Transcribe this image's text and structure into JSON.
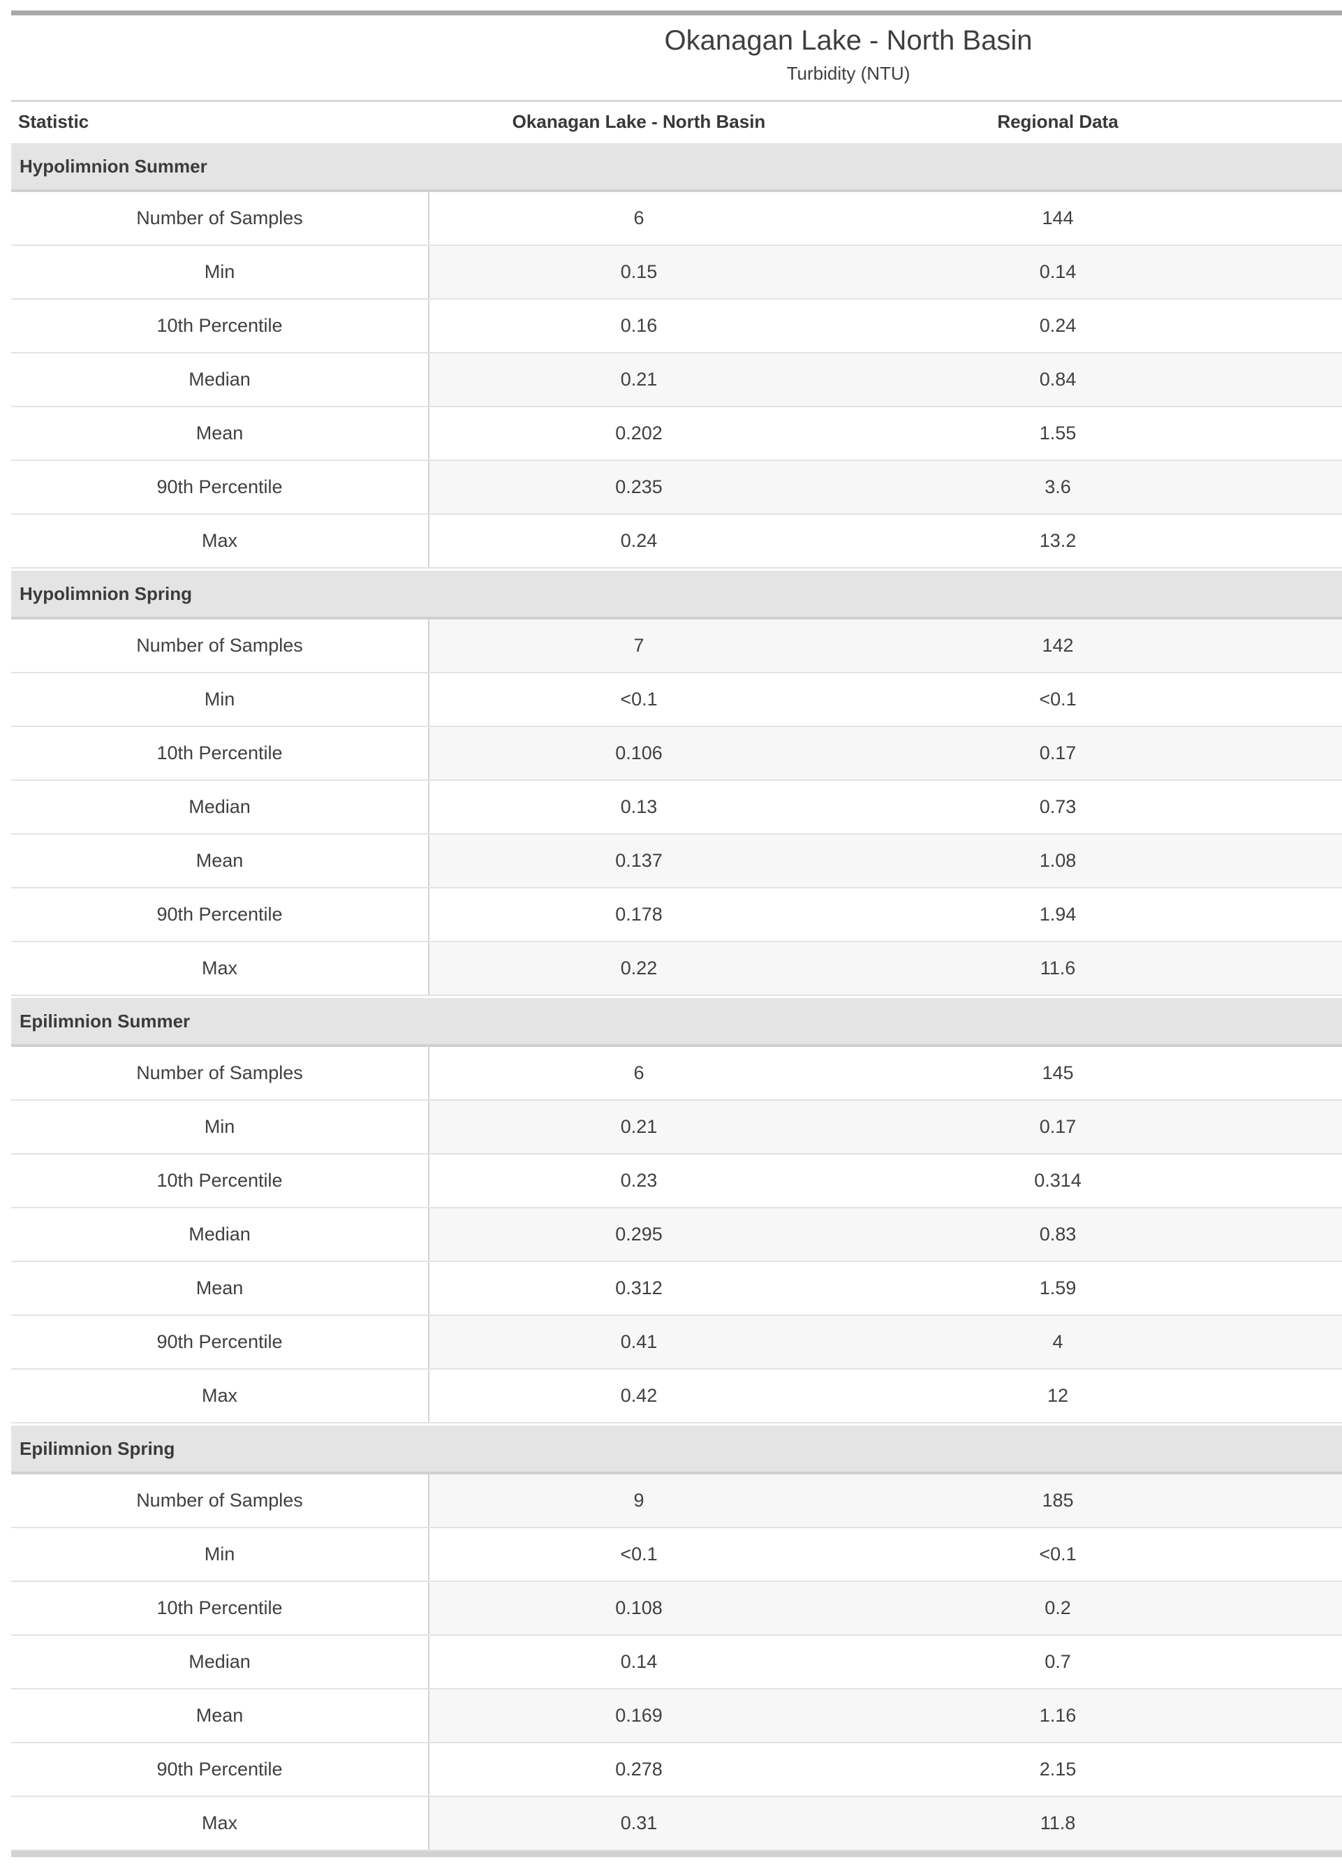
{
  "chart_data": {
    "type": "table",
    "title": "Okanagan Lake - North Basin",
    "subtitle": "Turbidity (NTU)",
    "columns": [
      "Statistic",
      "Okanagan Lake - North Basin",
      "Regional Data"
    ],
    "sections": [
      {
        "name": "Hypolimnion Summer",
        "rows": [
          [
            "Number of Samples",
            "6",
            "144"
          ],
          [
            "Min",
            "0.15",
            "0.14"
          ],
          [
            "10th Percentile",
            "0.16",
            "0.24"
          ],
          [
            "Median",
            "0.21",
            "0.84"
          ],
          [
            "Mean",
            "0.202",
            "1.55"
          ],
          [
            "90th Percentile",
            "0.235",
            "3.6"
          ],
          [
            "Max",
            "0.24",
            "13.2"
          ]
        ]
      },
      {
        "name": "Hypolimnion Spring",
        "rows": [
          [
            "Number of Samples",
            "7",
            "142"
          ],
          [
            "Min",
            "<0.1",
            "<0.1"
          ],
          [
            "10th Percentile",
            "0.106",
            "0.17"
          ],
          [
            "Median",
            "0.13",
            "0.73"
          ],
          [
            "Mean",
            "0.137",
            "1.08"
          ],
          [
            "90th Percentile",
            "0.178",
            "1.94"
          ],
          [
            "Max",
            "0.22",
            "11.6"
          ]
        ]
      },
      {
        "name": "Epilimnion Summer",
        "rows": [
          [
            "Number of Samples",
            "6",
            "145"
          ],
          [
            "Min",
            "0.21",
            "0.17"
          ],
          [
            "10th Percentile",
            "0.23",
            "0.314"
          ],
          [
            "Median",
            "0.295",
            "0.83"
          ],
          [
            "Mean",
            "0.312",
            "1.59"
          ],
          [
            "90th Percentile",
            "0.41",
            "4"
          ],
          [
            "Max",
            "0.42",
            "12"
          ]
        ]
      },
      {
        "name": "Epilimnion Spring",
        "rows": [
          [
            "Number of Samples",
            "9",
            "185"
          ],
          [
            "Min",
            "<0.1",
            "<0.1"
          ],
          [
            "10th Percentile",
            "0.108",
            "0.2"
          ],
          [
            "Median",
            "0.14",
            "0.7"
          ],
          [
            "Mean",
            "0.169",
            "1.16"
          ],
          [
            "90th Percentile",
            "0.278",
            "2.15"
          ],
          [
            "Max",
            "0.31",
            "11.8"
          ]
        ]
      }
    ],
    "layout": {
      "legend_position": "none",
      "grid": "horizontal row borders",
      "striping": "alternate data rows shaded, continuous across sections, value columns only"
    }
  },
  "colors": {
    "top_bar": "#a9a9a9",
    "bottom_bar": "#d2d2d2",
    "section_header_bg": "#e4e4e4",
    "section_header_border": "#d0d0d0",
    "row_stripe": "#f7f7f7",
    "row_border": "#e3e3e3",
    "column_divider": "#d4d4d4",
    "header_rule": "#d9d9d9",
    "text": "#3f3f3f"
  }
}
